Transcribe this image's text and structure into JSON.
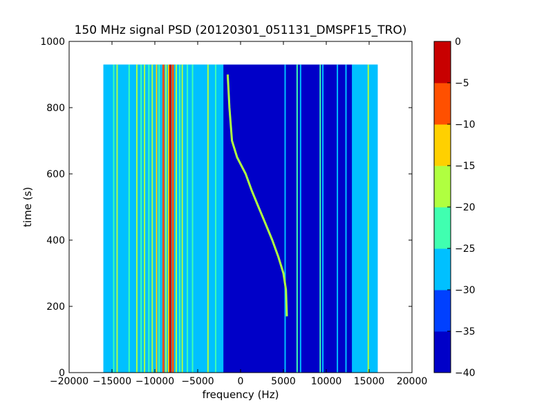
{
  "chart_data": {
    "type": "heatmap",
    "title": "150 MHz signal PSD (20120301_051131_DMSPF15_TRO)",
    "xlabel": "frequency (Hz)",
    "ylabel": "time (s)",
    "xlim": [
      -20000,
      20000
    ],
    "ylim": [
      0,
      1000
    ],
    "xticks": [
      -20000,
      -15000,
      -10000,
      -5000,
      0,
      5000,
      10000,
      15000,
      20000
    ],
    "xtick_labels": [
      "−20000",
      "−15000",
      "−10000",
      "−5000",
      "0",
      "5000",
      "10000",
      "15000",
      "20000"
    ],
    "yticks": [
      0,
      200,
      400,
      600,
      800,
      1000
    ],
    "ytick_labels": [
      "0",
      "200",
      "400",
      "600",
      "800",
      "1000"
    ],
    "data_extent": {
      "freq_min": -16000,
      "freq_max": 16000,
      "time_min": 0,
      "time_max": 930
    },
    "colorbar": {
      "levels": [
        -40,
        -35,
        -30,
        -25,
        -20,
        -15,
        -10,
        -5,
        0
      ],
      "tick_labels": [
        "−40",
        "−35",
        "−30",
        "−25",
        "−20",
        "−15",
        "−10",
        "−5",
        "0"
      ],
      "colors": [
        "#0000c8",
        "#0040ff",
        "#00c0ff",
        "#40ffb0",
        "#b0ff40",
        "#ffd000",
        "#ff5000",
        "#c80000"
      ]
    },
    "background_level": -27.5,
    "band_levels": [
      {
        "from": -16000,
        "to": -2000,
        "level": -27.5
      },
      {
        "from": -2000,
        "to": 13000,
        "level": -37.5
      },
      {
        "from": 13000,
        "to": 16000,
        "level": -27.5
      }
    ],
    "stripe_levels": [
      {
        "freq": -14800,
        "level": -22.5
      },
      {
        "freq": -14400,
        "level": -17.5
      },
      {
        "freq": -13000,
        "level": -22.5
      },
      {
        "freq": -12100,
        "level": -17.5
      },
      {
        "freq": -11600,
        "level": -22.5
      },
      {
        "freq": -11200,
        "level": -17.5
      },
      {
        "freq": -10700,
        "level": -22.5
      },
      {
        "freq": -10300,
        "level": -17.5
      },
      {
        "freq": -9800,
        "level": -12.5
      },
      {
        "freq": -9500,
        "level": -22.5
      },
      {
        "freq": -9000,
        "level": -7.5
      },
      {
        "freq": -8700,
        "level": -17.5
      },
      {
        "freq": -8400,
        "level": -12.5
      },
      {
        "freq": -8200,
        "level": -2.5
      },
      {
        "freq": -7900,
        "level": -7.5
      },
      {
        "freq": -7500,
        "level": -17.5
      },
      {
        "freq": -7100,
        "level": -22.5
      },
      {
        "freq": -6800,
        "level": -17.5
      },
      {
        "freq": -6200,
        "level": -22.5
      },
      {
        "freq": -5600,
        "level": -22.5
      },
      {
        "freq": -3800,
        "level": -17.5
      },
      {
        "freq": -2900,
        "level": -22.5
      },
      {
        "freq": 5200,
        "level": -27.5
      },
      {
        "freq": 6600,
        "level": -22.5
      },
      {
        "freq": 7000,
        "level": -27.5
      },
      {
        "freq": 9300,
        "level": -22.5
      },
      {
        "freq": 9600,
        "level": -27.5
      },
      {
        "freq": 11300,
        "level": -27.5
      },
      {
        "freq": 12300,
        "level": -27.5
      },
      {
        "freq": 14900,
        "level": -17.5
      }
    ],
    "drifting_signal": {
      "level": -17.5,
      "track": [
        {
          "t": 170,
          "f": 5400
        },
        {
          "t": 250,
          "f": 5300
        },
        {
          "t": 300,
          "f": 5000
        },
        {
          "t": 350,
          "f": 4400
        },
        {
          "t": 400,
          "f": 3700
        },
        {
          "t": 450,
          "f": 2900
        },
        {
          "t": 500,
          "f": 2100
        },
        {
          "t": 550,
          "f": 1300
        },
        {
          "t": 600,
          "f": 600
        },
        {
          "t": 650,
          "f": -400
        },
        {
          "t": 700,
          "f": -1000
        },
        {
          "t": 800,
          "f": -1300
        },
        {
          "t": 900,
          "f": -1500
        }
      ]
    }
  }
}
